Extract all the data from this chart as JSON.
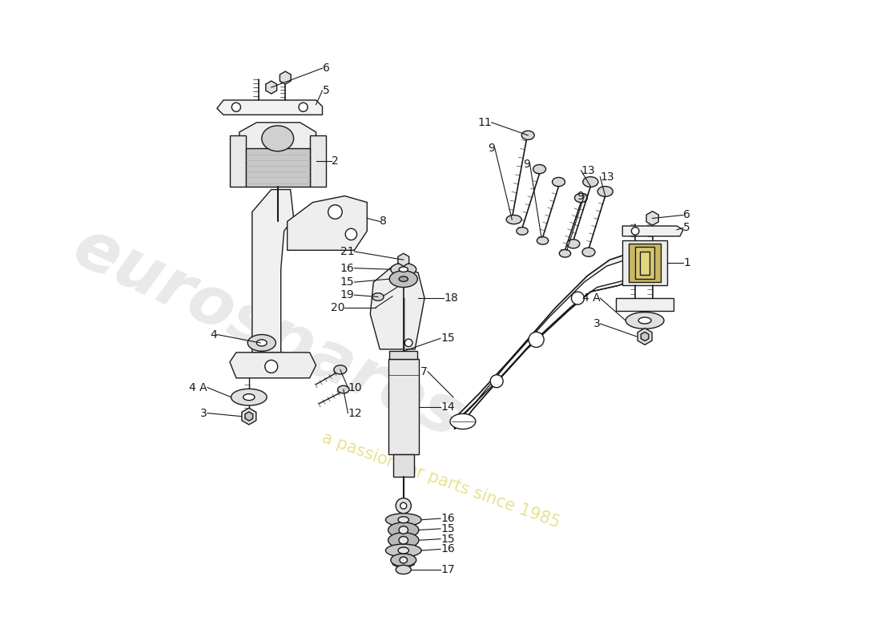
{
  "bg_color": "#ffffff",
  "lc": "#1a1a1a",
  "lw": 1.0,
  "fs": 10,
  "figsize": [
    11.0,
    8.0
  ],
  "dpi": 100,
  "xlim": [
    0,
    11
  ],
  "ylim": [
    0,
    10
  ]
}
